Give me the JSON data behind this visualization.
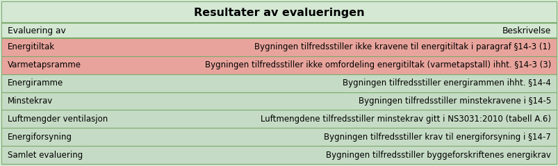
{
  "title": "Resultater av evalueringen",
  "header_left": "Evaluering av",
  "header_right": "Beskrivelse",
  "rows": [
    {
      "left": "Energitiltak",
      "right": "Bygningen tilfredsstiller ikke kravene til energitiltak i paragraf §14-3 (1)",
      "bg": "#e8a49c"
    },
    {
      "left": "Varmetapsramme",
      "right": "Bygningen tilfredsstiller ikke omfordeling energitiltak (varmetapstall) ihht. §14-3 (3)",
      "bg": "#e8a49c"
    },
    {
      "left": "Energiramme",
      "right": "Bygningen tilfredsstiller energirammen ihht. §14-4",
      "bg": "#c5dbc5"
    },
    {
      "left": "Minstekrav",
      "right": "Bygningen tilfredsstiller minstekravene i §14-5",
      "bg": "#c5dbc5"
    },
    {
      "left": "Luftmengder ventilasjon",
      "right": "Luftmengdene tilfredsstiller minstekrav gitt i NS3031:2010 (tabell A.6)",
      "bg": "#c5dbc5"
    },
    {
      "left": "Energiforsyning",
      "right": "Bygningen tilfredsstiller krav til energiforsyning i §14-7",
      "bg": "#c5dbc5"
    },
    {
      "left": "Samlet evaluering",
      "right": "Bygningen tilfredsstiller byggeforskriftenes energikrav",
      "bg": "#c5dbc5"
    }
  ],
  "outer_bg": "#d4e8d4",
  "border_color": "#7aaa6a",
  "text_color": "#000000",
  "title_fontsize": 11.5,
  "body_fontsize": 8.5,
  "header_fontsize": 8.8
}
